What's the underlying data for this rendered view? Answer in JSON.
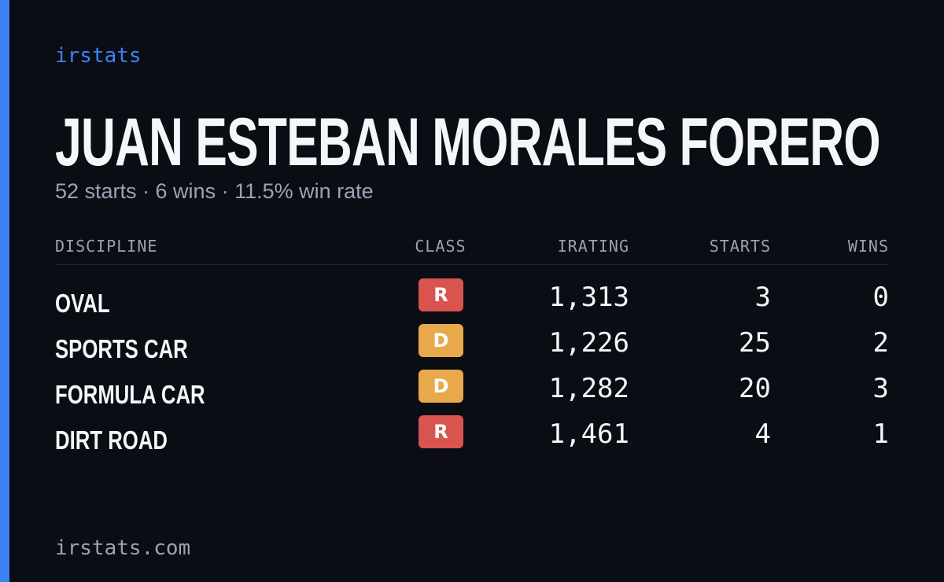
{
  "brand": "irstats",
  "driver": {
    "name": "JUAN ESTEBAN MORALES FORERO",
    "summary": "52 starts · 6 wins · 11.5% win rate"
  },
  "table": {
    "header": [
      "DISCIPLINE",
      "CLASS",
      "IRATING",
      "STARTS",
      "WINS"
    ],
    "rows": [
      {
        "discipline": "OVAL",
        "class": "R",
        "class_color": "#d9534f",
        "irating": "1,313",
        "starts": "3",
        "wins": "0"
      },
      {
        "discipline": "SPORTS CAR",
        "class": "D",
        "class_color": "#e8a94a",
        "irating": "1,226",
        "starts": "25",
        "wins": "2"
      },
      {
        "discipline": "FORMULA CAR",
        "class": "D",
        "class_color": "#e8a94a",
        "irating": "1,282",
        "starts": "20",
        "wins": "3"
      },
      {
        "discipline": "DIRT ROAD",
        "class": "R",
        "class_color": "#d9534f",
        "irating": "1,461",
        "starts": "4",
        "wins": "1"
      }
    ]
  },
  "footer": "irstats.com"
}
